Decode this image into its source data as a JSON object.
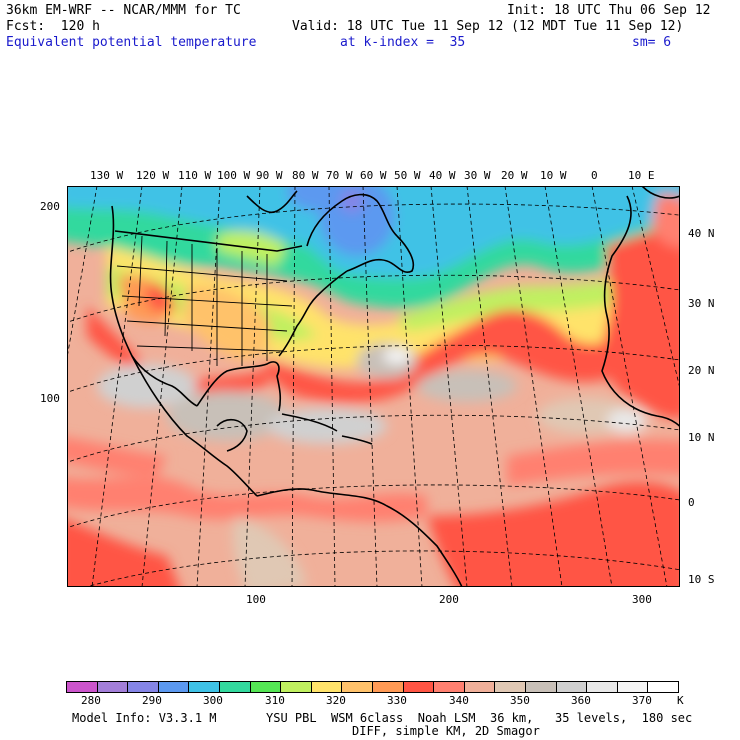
{
  "header": {
    "model": "36km EM-WRF -- NCAR/MMM for TC",
    "init": "Init: 18 UTC Thu 06 Sep 12",
    "fcst": "Fcst:  120 h",
    "valid": "Valid: 18 UTC Tue 11 Sep 12 (12 MDT Tue 11 Sep 12)",
    "field": "Equivalent potential temperature",
    "level": "at k-index =  35",
    "smooth": "sm= 6"
  },
  "map": {
    "top_lon_labels": [
      "130 W",
      "120 W",
      "110 W",
      "100 W",
      "90 W",
      "80 W",
      "70 W",
      "60 W",
      "50 W",
      "40 W",
      "30 W",
      "20 W",
      "10 W",
      "0",
      "10 E"
    ],
    "right_lat_labels": [
      "40 N",
      "30 N",
      "20 N",
      "10 N",
      "0",
      "10 S"
    ],
    "left_grid_labels": [
      "200",
      "100"
    ],
    "bottom_grid_labels": [
      "100",
      "200",
      "300"
    ]
  },
  "colorbar": {
    "colors": [
      "#cc55cc",
      "#a37fd9",
      "#8585e6",
      "#5c99f0",
      "#3fc2e6",
      "#33d99e",
      "#55e655",
      "#c0f060",
      "#ffe36b",
      "#ffc26b",
      "#ff9a55",
      "#ff5544",
      "#ff8070",
      "#f0b09a",
      "#e0c8b4",
      "#c8c0b8",
      "#d0d0d0",
      "#e8e8e8",
      "#f4f4f4",
      "#ffffff"
    ],
    "labels": [
      "280",
      "290",
      "300",
      "310",
      "320",
      "330",
      "340",
      "350",
      "360",
      "370"
    ],
    "unit": "K"
  },
  "footer": {
    "line1_left": "Model Info: V3.3.1 M",
    "line1_right": "YSU PBL  WSM 6class  Noah LSM  36 km,   35 levels,  180 sec",
    "line2": "DIFF, simple KM, 2D Smagor"
  }
}
